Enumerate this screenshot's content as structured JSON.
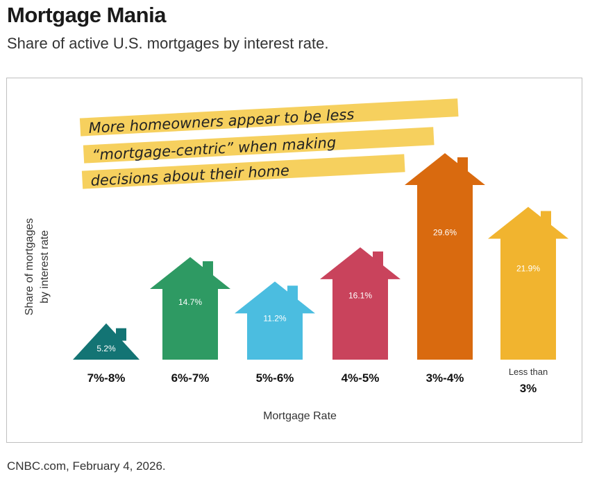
{
  "title": "Mortgage Mania",
  "subtitle": "Share of active U.S. mortgages by interest rate.",
  "source": "CNBC.com, February 4, 2026.",
  "annotation": {
    "lines": [
      "More homeowners appear to be less",
      "“mortgage-centric” when making",
      "decisions about their home"
    ],
    "highlight_color": "#f5c842"
  },
  "chart_data": {
    "type": "bar",
    "mark_shape": "house",
    "title": "Mortgage Mania",
    "subtitle": "Share of active U.S. mortgages by interest rate.",
    "xlabel": "Mortgage Rate",
    "ylabel": "Share of mortgages by interest rate",
    "ylabel_lines": [
      "Share of mortgages",
      "by interest rate"
    ],
    "categories": [
      "7%-8%",
      "6%-7%",
      "5%-6%",
      "4%-5%",
      "3%-4%",
      "Less than 3%"
    ],
    "category_display": [
      {
        "small": "",
        "big": "7%-8%"
      },
      {
        "small": "",
        "big": "6%-7%"
      },
      {
        "small": "",
        "big": "5%-6%"
      },
      {
        "small": "",
        "big": "4%-5%"
      },
      {
        "small": "",
        "big": "3%-4%"
      },
      {
        "small": "Less than",
        "big": "3%"
      }
    ],
    "values": [
      5.2,
      14.7,
      11.2,
      16.1,
      29.6,
      21.9
    ],
    "value_labels": [
      "5.2%",
      "14.7%",
      "11.2%",
      "16.1%",
      "29.6%",
      "21.9%"
    ],
    "unit": "%",
    "colors": [
      "#137474",
      "#2e9a63",
      "#4bbde0",
      "#c9435c",
      "#d96a0f",
      "#f1b42f"
    ],
    "ylim": [
      0,
      30
    ],
    "grid": false,
    "legend": "none"
  }
}
